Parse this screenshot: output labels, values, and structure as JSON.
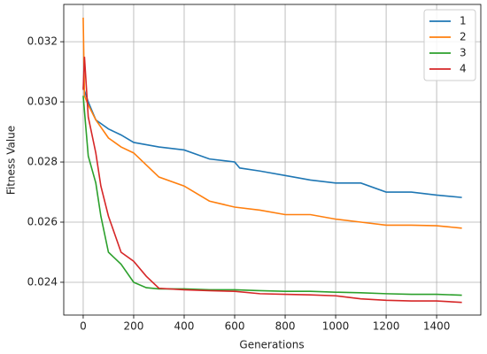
{
  "chart_data": {
    "type": "line",
    "xlabel": "Generations",
    "ylabel": "Fitness Value",
    "xlim": [
      -77,
      1575
    ],
    "ylim": [
      0.02291,
      0.03324
    ],
    "xticks": [
      0,
      200,
      400,
      600,
      800,
      1000,
      1200,
      1400
    ],
    "yticks": [
      0.024,
      0.026,
      0.028,
      {
        "value": 0.03,
        "label": "0.030"
      },
      0.032
    ],
    "grid": true,
    "legend": "upper right",
    "series": [
      {
        "name": "1",
        "color": "#1f77b4",
        "x": [
          0,
          20,
          50,
          100,
          150,
          200,
          300,
          400,
          500,
          600,
          620,
          700,
          800,
          900,
          1000,
          1100,
          1200,
          1300,
          1400,
          1500
        ],
        "values": [
          0.0305,
          0.03,
          0.0294,
          0.0291,
          0.0289,
          0.02865,
          0.0285,
          0.0284,
          0.0281,
          0.028,
          0.0278,
          0.0277,
          0.02755,
          0.0274,
          0.0273,
          0.0273,
          0.027,
          0.027,
          0.0269,
          0.02682
        ]
      },
      {
        "name": "2",
        "color": "#ff7f0e",
        "x": [
          0,
          5,
          20,
          50,
          100,
          150,
          200,
          250,
          300,
          400,
          500,
          600,
          700,
          800,
          900,
          1000,
          1100,
          1200,
          1300,
          1400,
          1500
        ],
        "values": [
          0.0328,
          0.0302,
          0.0299,
          0.0294,
          0.0288,
          0.0285,
          0.0283,
          0.0279,
          0.0275,
          0.0272,
          0.0267,
          0.0265,
          0.0264,
          0.02625,
          0.02625,
          0.0261,
          0.026,
          0.0259,
          0.0259,
          0.02588,
          0.0258
        ]
      },
      {
        "name": "3",
        "color": "#2ca02c",
        "x": [
          0,
          10,
          20,
          50,
          70,
          100,
          150,
          200,
          250,
          300,
          400,
          500,
          600,
          700,
          800,
          900,
          1000,
          1100,
          1200,
          1300,
          1400,
          1500
        ],
        "values": [
          0.0302,
          0.0292,
          0.0282,
          0.0273,
          0.0262,
          0.025,
          0.0246,
          0.024,
          0.02382,
          0.02378,
          0.02378,
          0.02375,
          0.02375,
          0.02372,
          0.0237,
          0.0237,
          0.02367,
          0.02365,
          0.02362,
          0.0236,
          0.0236,
          0.02357
        ]
      },
      {
        "name": "4",
        "color": "#d62728",
        "x": [
          0,
          5,
          20,
          50,
          70,
          100,
          150,
          200,
          250,
          300,
          400,
          500,
          600,
          700,
          800,
          900,
          1000,
          1100,
          1200,
          1300,
          1400,
          1500
        ],
        "values": [
          0.0304,
          0.0315,
          0.0295,
          0.0283,
          0.0272,
          0.0262,
          0.025,
          0.0247,
          0.0242,
          0.0238,
          0.02375,
          0.02372,
          0.0237,
          0.02362,
          0.0236,
          0.02358,
          0.02355,
          0.02345,
          0.0234,
          0.02338,
          0.02338,
          0.02333
        ]
      }
    ]
  }
}
